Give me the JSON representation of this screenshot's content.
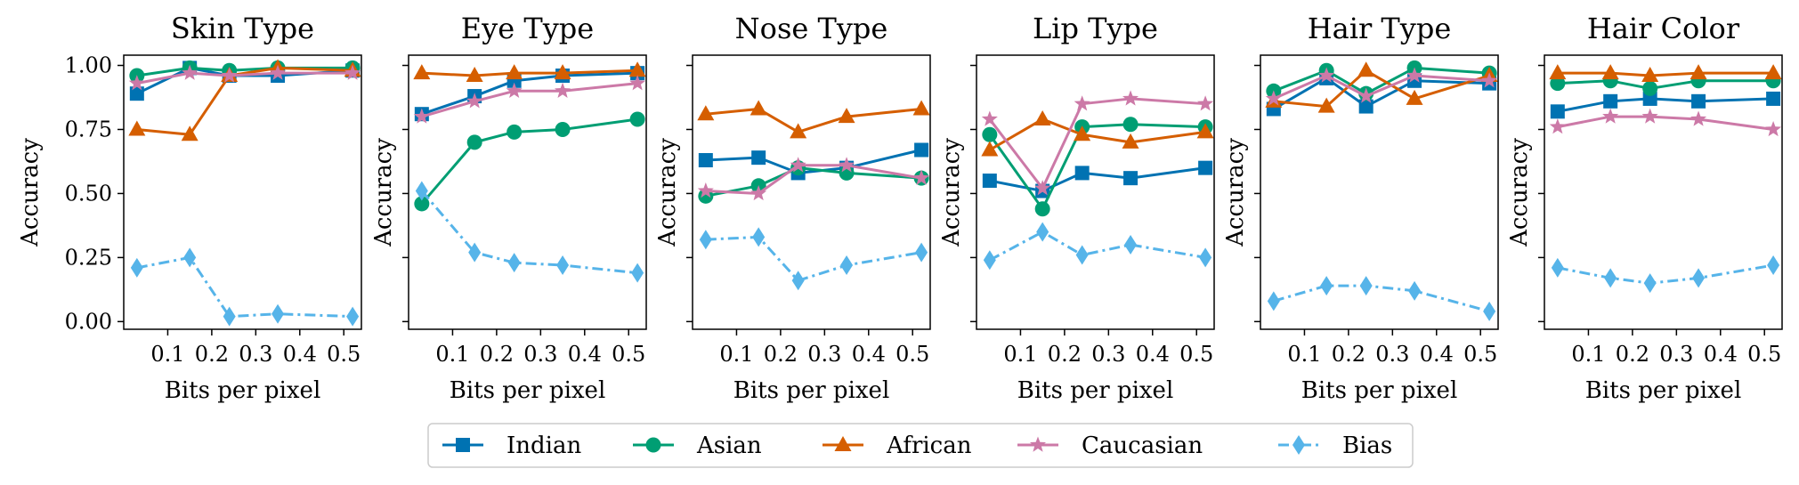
{
  "chart_data": {
    "type": "line",
    "x": [
      0.03,
      0.15,
      0.24,
      0.35,
      0.52
    ],
    "xlim": [
      0.0,
      0.54
    ],
    "ylim": [
      -0.03,
      1.04
    ],
    "xticks": [
      "0.1",
      "0.2",
      "0.3",
      "0.4",
      "0.5"
    ],
    "xtick_values": [
      0.1,
      0.2,
      0.3,
      0.4,
      0.5
    ],
    "yticks": [
      "0.00",
      "0.25",
      "0.50",
      "0.75",
      "1.00"
    ],
    "ytick_values": [
      0.0,
      0.25,
      0.5,
      0.75,
      1.0
    ],
    "xlabel": "Bits per pixel",
    "ylabel": "Accuracy",
    "grid": false,
    "legend_position": "bottom-center",
    "series_style": [
      {
        "name": "Indian",
        "color": "#0072b2",
        "marker": "square",
        "dash": "solid"
      },
      {
        "name": "Asian",
        "color": "#009e73",
        "marker": "circle",
        "dash": "solid"
      },
      {
        "name": "African",
        "color": "#d55e00",
        "marker": "triangle",
        "dash": "solid"
      },
      {
        "name": "Caucasian",
        "color": "#cc79a7",
        "marker": "star",
        "dash": "solid"
      },
      {
        "name": "Bias",
        "color": "#56b4e9",
        "marker": "diamond",
        "dash": "dashdot"
      }
    ],
    "panels": [
      {
        "title": "Skin Type",
        "series": [
          {
            "name": "Indian",
            "values": [
              0.89,
              0.99,
              0.96,
              0.96,
              0.98
            ]
          },
          {
            "name": "Asian",
            "values": [
              0.96,
              0.99,
              0.98,
              0.99,
              0.99
            ]
          },
          {
            "name": "African",
            "values": [
              0.75,
              0.73,
              0.96,
              0.99,
              0.98
            ]
          },
          {
            "name": "Caucasian",
            "values": [
              0.93,
              0.97,
              0.96,
              0.97,
              0.97
            ]
          },
          {
            "name": "Bias",
            "values": [
              0.21,
              0.25,
              0.02,
              0.03,
              0.02
            ]
          }
        ]
      },
      {
        "title": "Eye Type",
        "series": [
          {
            "name": "Indian",
            "values": [
              0.81,
              0.88,
              0.94,
              0.96,
              0.97
            ]
          },
          {
            "name": "Asian",
            "values": [
              0.46,
              0.7,
              0.74,
              0.75,
              0.79
            ]
          },
          {
            "name": "African",
            "values": [
              0.97,
              0.96,
              0.97,
              0.97,
              0.98
            ]
          },
          {
            "name": "Caucasian",
            "values": [
              0.8,
              0.86,
              0.9,
              0.9,
              0.93
            ]
          },
          {
            "name": "Bias",
            "values": [
              0.51,
              0.27,
              0.23,
              0.22,
              0.19
            ]
          }
        ]
      },
      {
        "title": "Nose Type",
        "series": [
          {
            "name": "Indian",
            "values": [
              0.63,
              0.64,
              0.58,
              0.6,
              0.67
            ]
          },
          {
            "name": "Asian",
            "values": [
              0.49,
              0.53,
              0.6,
              0.58,
              0.56
            ]
          },
          {
            "name": "African",
            "values": [
              0.81,
              0.83,
              0.74,
              0.8,
              0.83
            ]
          },
          {
            "name": "Caucasian",
            "values": [
              0.51,
              0.5,
              0.61,
              0.61,
              0.56
            ]
          },
          {
            "name": "Bias",
            "values": [
              0.32,
              0.33,
              0.16,
              0.22,
              0.27
            ]
          }
        ]
      },
      {
        "title": "Lip Type",
        "series": [
          {
            "name": "Indian",
            "values": [
              0.55,
              0.51,
              0.58,
              0.56,
              0.6
            ]
          },
          {
            "name": "Asian",
            "values": [
              0.73,
              0.44,
              0.76,
              0.77,
              0.76
            ]
          },
          {
            "name": "African",
            "values": [
              0.67,
              0.79,
              0.73,
              0.7,
              0.74
            ]
          },
          {
            "name": "Caucasian",
            "values": [
              0.79,
              0.52,
              0.85,
              0.87,
              0.85
            ]
          },
          {
            "name": "Bias",
            "values": [
              0.24,
              0.35,
              0.26,
              0.3,
              0.25
            ]
          }
        ]
      },
      {
        "title": "Hair Type",
        "series": [
          {
            "name": "Indian",
            "values": [
              0.83,
              0.95,
              0.84,
              0.94,
              0.93
            ]
          },
          {
            "name": "Asian",
            "values": [
              0.9,
              0.98,
              0.89,
              0.99,
              0.97
            ]
          },
          {
            "name": "African",
            "values": [
              0.86,
              0.84,
              0.98,
              0.87,
              0.96
            ]
          },
          {
            "name": "Caucasian",
            "values": [
              0.87,
              0.96,
              0.88,
              0.96,
              0.94
            ]
          },
          {
            "name": "Bias",
            "values": [
              0.08,
              0.14,
              0.14,
              0.12,
              0.04
            ]
          }
        ]
      },
      {
        "title": "Hair Color",
        "series": [
          {
            "name": "Indian",
            "values": [
              0.82,
              0.86,
              0.87,
              0.86,
              0.87
            ]
          },
          {
            "name": "Asian",
            "values": [
              0.93,
              0.94,
              0.91,
              0.94,
              0.94
            ]
          },
          {
            "name": "African",
            "values": [
              0.97,
              0.97,
              0.96,
              0.97,
              0.97
            ]
          },
          {
            "name": "Caucasian",
            "values": [
              0.76,
              0.8,
              0.8,
              0.79,
              0.75
            ]
          },
          {
            "name": "Bias",
            "values": [
              0.21,
              0.17,
              0.15,
              0.17,
              0.22
            ]
          }
        ]
      }
    ]
  }
}
